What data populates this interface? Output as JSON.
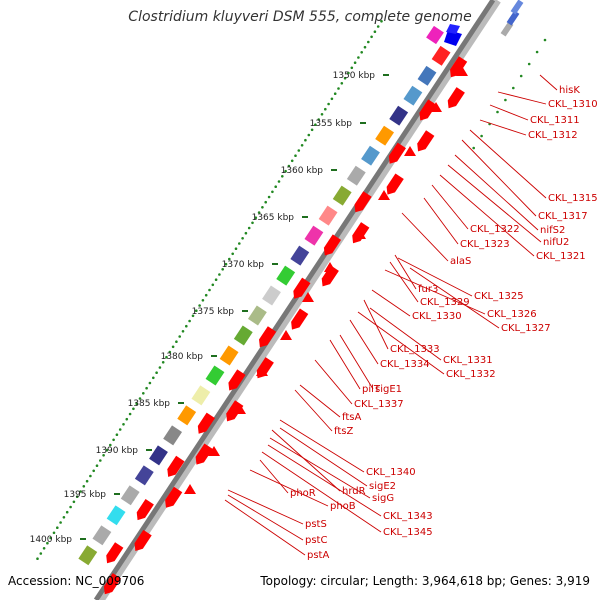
{
  "title": "Clostridium kluyveri DSM 555, complete genome",
  "footer": {
    "accession": "Accession: NC_009706",
    "topology": "Topology: circular; Length: 3,964,618 bp; Genes: 3,919"
  },
  "axis": {
    "unit": "kbp",
    "ticks": [
      {
        "label": "1350 kbp"
      },
      {
        "label": "1355 kbp"
      },
      {
        "label": "1360 kbp"
      },
      {
        "label": "1365 kbp"
      },
      {
        "label": "1370 kbp"
      },
      {
        "label": "1375 kbp"
      },
      {
        "label": "1380 kbp"
      },
      {
        "label": "1385 kbp"
      },
      {
        "label": "1390 kbp"
      },
      {
        "label": "1395 kbp"
      },
      {
        "label": "1400 kbp"
      }
    ]
  },
  "genes": [
    {
      "label": "hisK"
    },
    {
      "label": "CKL_1310"
    },
    {
      "label": "CKL_1311"
    },
    {
      "label": "CKL_1312"
    },
    {
      "label": "CKL_1315"
    },
    {
      "label": "CKL_1317"
    },
    {
      "label": "nifS2"
    },
    {
      "label": "nifU2"
    },
    {
      "label": "CKL_1321"
    },
    {
      "label": "CKL_1322"
    },
    {
      "label": "CKL_1323"
    },
    {
      "label": "alaS"
    },
    {
      "label": "fur3"
    },
    {
      "label": "CKL_1325"
    },
    {
      "label": "CKL_1329"
    },
    {
      "label": "CKL_1326"
    },
    {
      "label": "CKL_1330"
    },
    {
      "label": "CKL_1327"
    },
    {
      "label": "CKL_1333"
    },
    {
      "label": "CKL_1331"
    },
    {
      "label": "CKL_1334"
    },
    {
      "label": "CKL_1332"
    },
    {
      "label": "pilT"
    },
    {
      "label": "sigE1"
    },
    {
      "label": "CKL_1337"
    },
    {
      "label": "ftsA"
    },
    {
      "label": "ftsZ"
    },
    {
      "label": "CKL_1340"
    },
    {
      "label": "sigE2"
    },
    {
      "label": "phoR"
    },
    {
      "label": "hrdR"
    },
    {
      "label": "sigG"
    },
    {
      "label": "phoB"
    },
    {
      "label": "CKL_1343"
    },
    {
      "label": "CKL_1345"
    },
    {
      "label": "pstS"
    },
    {
      "label": "pstC"
    },
    {
      "label": "pstA"
    }
  ],
  "colors": {
    "forward_cds": "#ff0000",
    "label": "#cc0000",
    "backbone": "#777777",
    "gc_dots": "#228822",
    "ticks": "#1f6f1f"
  }
}
